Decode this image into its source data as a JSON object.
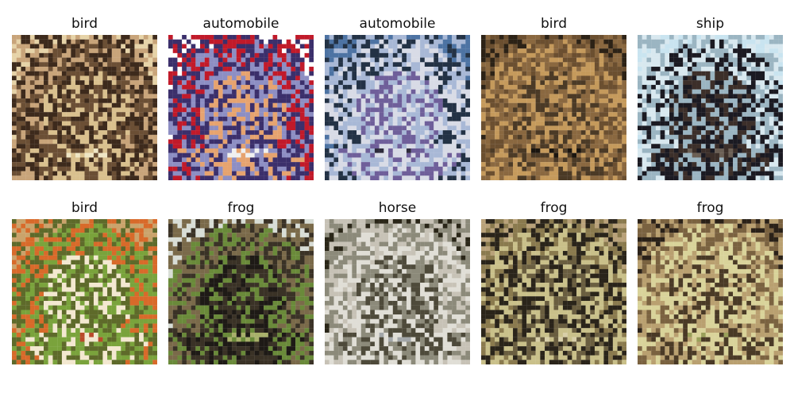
{
  "samples": [
    {
      "label": "bird",
      "palette": [
        "#e6d3a8",
        "#c8a47a",
        "#3d2a1c",
        "#6b4f35",
        "#d9c08e",
        "#efe6c5"
      ]
    },
    {
      "label": "automobile",
      "palette": [
        "#ffffff",
        "#c11a2a",
        "#3b2f6b",
        "#8d8ec3",
        "#e6a36f",
        "#f0f0f0"
      ]
    },
    {
      "label": "automobile",
      "palette": [
        "#4d73a3",
        "#233245",
        "#a8b8d6",
        "#d8dbe6",
        "#6f5f9a",
        "#2d2a3b"
      ]
    },
    {
      "label": "bird",
      "palette": [
        "#2c2216",
        "#6b4f30",
        "#8a6840",
        "#c59a5c",
        "#4b3a26",
        "#1b1610"
      ]
    },
    {
      "label": "ship",
      "palette": [
        "#c9e4f0",
        "#d8e8ef",
        "#9bb5c2",
        "#1b1a22",
        "#3c2f2a",
        "#6b5f55"
      ]
    },
    {
      "label": "bird",
      "palette": [
        "#caa36b",
        "#d86a2a",
        "#5e6a2a",
        "#7aa33c",
        "#f3e8d0",
        "#b94a2a"
      ]
    },
    {
      "label": "frog",
      "palette": [
        "#d8ddd6",
        "#7a6a4a",
        "#3a3226",
        "#6a8a3a",
        "#1e1a16",
        "#a8b06a"
      ]
    },
    {
      "label": "horse",
      "palette": [
        "#2a2618",
        "#c7c2b6",
        "#8c8a7a",
        "#e0ded6",
        "#4e4a3a",
        "#a2a6a8"
      ]
    },
    {
      "label": "frog",
      "palette": [
        "#b9a27a",
        "#8a7a4e",
        "#2a241a",
        "#c9c08a",
        "#6a5e40",
        "#d8cfa8"
      ]
    },
    {
      "label": "frog",
      "palette": [
        "#2a2118",
        "#7a6240",
        "#b9a070",
        "#d9d39a",
        "#4a3a26",
        "#9aa05a"
      ]
    }
  ]
}
